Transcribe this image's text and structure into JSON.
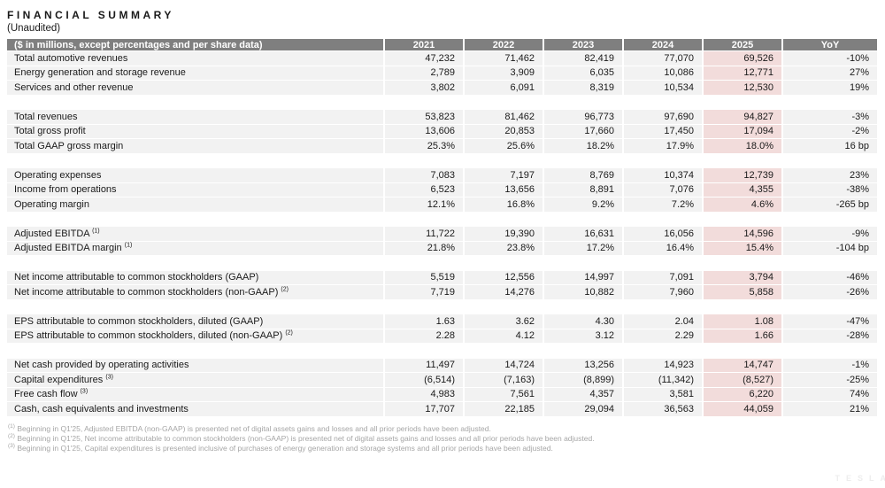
{
  "title": "FINANCIAL SUMMARY",
  "subtitle": "(Unaudited)",
  "colors": {
    "header_bg": "#7f7f7f",
    "header_text": "#ffffff",
    "row_bg": "#f2f2f2",
    "highlight_2025_bg": "#f2dcdb",
    "footnote_text": "#a6a6a6"
  },
  "table": {
    "header_label": "($ in millions, except percentages and per share data)",
    "years": [
      "2021",
      "2022",
      "2023",
      "2024",
      "2025"
    ],
    "yoy_label": "YoY",
    "highlighted_year": "2025",
    "sections": [
      {
        "rows": [
          {
            "label": "Total automotive revenues",
            "sup": "",
            "values": [
              "47,232",
              "71,462",
              "82,419",
              "77,070",
              "69,526"
            ],
            "yoy": "-10%"
          },
          {
            "label": "Energy generation and storage revenue",
            "sup": "",
            "values": [
              "2,789",
              "3,909",
              "6,035",
              "10,086",
              "12,771"
            ],
            "yoy": "27%"
          },
          {
            "label": "Services and other revenue",
            "sup": "",
            "values": [
              "3,802",
              "6,091",
              "8,319",
              "10,534",
              "12,530"
            ],
            "yoy": "19%"
          }
        ]
      },
      {
        "rows": [
          {
            "label": "Total revenues",
            "sup": "",
            "values": [
              "53,823",
              "81,462",
              "96,773",
              "97,690",
              "94,827"
            ],
            "yoy": "-3%"
          },
          {
            "label": "Total gross profit",
            "sup": "",
            "values": [
              "13,606",
              "20,853",
              "17,660",
              "17,450",
              "17,094"
            ],
            "yoy": "-2%"
          },
          {
            "label": "Total GAAP gross margin",
            "sup": "",
            "values": [
              "25.3%",
              "25.6%",
              "18.2%",
              "17.9%",
              "18.0%"
            ],
            "yoy": "16 bp"
          }
        ]
      },
      {
        "rows": [
          {
            "label": "Operating expenses",
            "sup": "",
            "values": [
              "7,083",
              "7,197",
              "8,769",
              "10,374",
              "12,739"
            ],
            "yoy": "23%"
          },
          {
            "label": "Income from operations",
            "sup": "",
            "values": [
              "6,523",
              "13,656",
              "8,891",
              "7,076",
              "4,355"
            ],
            "yoy": "-38%"
          },
          {
            "label": "Operating margin",
            "sup": "",
            "values": [
              "12.1%",
              "16.8%",
              "9.2%",
              "7.2%",
              "4.6%"
            ],
            "yoy": "-265 bp"
          }
        ]
      },
      {
        "rows": [
          {
            "label": "Adjusted EBITDA",
            "sup": "(1)",
            "values": [
              "11,722",
              "19,390",
              "16,631",
              "16,056",
              "14,596"
            ],
            "yoy": "-9%"
          },
          {
            "label": "Adjusted EBITDA margin",
            "sup": "(1)",
            "values": [
              "21.8%",
              "23.8%",
              "17.2%",
              "16.4%",
              "15.4%"
            ],
            "yoy": "-104 bp"
          }
        ]
      },
      {
        "rows": [
          {
            "label": "Net income attributable to common stockholders (GAAP)",
            "sup": "",
            "values": [
              "5,519",
              "12,556",
              "14,997",
              "7,091",
              "3,794"
            ],
            "yoy": "-46%"
          },
          {
            "label": "Net income attributable to common stockholders (non-GAAP)",
            "sup": "(2)",
            "values": [
              "7,719",
              "14,276",
              "10,882",
              "7,960",
              "5,858"
            ],
            "yoy": "-26%"
          }
        ]
      },
      {
        "rows": [
          {
            "label": "EPS attributable to common stockholders, diluted (GAAP)",
            "sup": "",
            "values": [
              "1.63",
              "3.62",
              "4.30",
              "2.04",
              "1.08"
            ],
            "yoy": "-47%"
          },
          {
            "label": "EPS attributable to common stockholders, diluted (non-GAAP)",
            "sup": "(2)",
            "values": [
              "2.28",
              "4.12",
              "3.12",
              "2.29",
              "1.66"
            ],
            "yoy": "-28%"
          }
        ]
      },
      {
        "rows": [
          {
            "label": "Net cash provided by operating activities",
            "sup": "",
            "values": [
              "11,497",
              "14,724",
              "13,256",
              "14,923",
              "14,747"
            ],
            "yoy": "-1%"
          },
          {
            "label": "Capital expenditures",
            "sup": "(3)",
            "values": [
              "(6,514)",
              "(7,163)",
              "(8,899)",
              "(11,342)",
              "(8,527)"
            ],
            "yoy": "-25%"
          },
          {
            "label": "Free cash flow",
            "sup": "(3)",
            "values": [
              "4,983",
              "7,561",
              "4,357",
              "3,581",
              "6,220"
            ],
            "yoy": "74%"
          },
          {
            "label": "Cash, cash equivalents and investments",
            "sup": "",
            "values": [
              "17,707",
              "22,185",
              "29,094",
              "36,563",
              "44,059"
            ],
            "yoy": "21%"
          }
        ]
      }
    ]
  },
  "footnotes": [
    {
      "ref": "(1)",
      "text": "Beginning in Q1'25, Adjusted EBITDA (non-GAAP) is presented net of digital assets gains and losses and all prior periods have been adjusted."
    },
    {
      "ref": "(2)",
      "text": "Beginning in Q1'25, Net income attributable to common stockholders (non-GAAP) is presented net of digital assets gains and losses and all prior periods have been adjusted."
    },
    {
      "ref": "(3)",
      "text": "Beginning in Q1'25, Capital expenditures is presented inclusive of purchases of energy generation and storage systems and all prior periods have been adjusted."
    }
  ],
  "watermark": "TESLA"
}
